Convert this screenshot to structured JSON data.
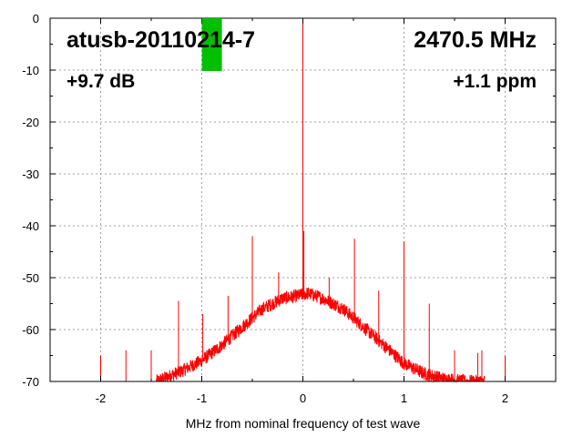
{
  "chart_data": {
    "type": "line",
    "title": "atusb-20110214-7",
    "frequency_text": "2470.5 MHz",
    "gain_text": "+9.7 dB",
    "ppm_text": "+1.1 ppm",
    "xlabel": "MHz from nominal frequency of test wave",
    "ylabel": "",
    "xlim": [
      -2.5,
      2.5
    ],
    "ylim": [
      -70,
      0
    ],
    "xticks": [
      -2,
      -1,
      0,
      1,
      2
    ],
    "xtick_labels": [
      "-2",
      "-1",
      "0",
      "1",
      "2"
    ],
    "yticks": [
      0,
      -10,
      -20,
      -30,
      -40,
      -50,
      -60,
      -70
    ],
    "ytick_labels": [
      "0",
      "-10",
      "-20",
      "-30",
      "-40",
      "-50",
      "-60",
      "-70"
    ],
    "grid": true,
    "series": [
      {
        "color": "#ff0000",
        "noise_envelope": {
          "x": [
            -1.45,
            -1.2,
            -1.0,
            -0.8,
            -0.6,
            -0.4,
            -0.2,
            -0.05,
            0.05,
            0.2,
            0.4,
            0.6,
            0.8,
            1.0,
            1.2,
            1.4,
            1.6,
            1.8
          ],
          "y": [
            -70,
            -68,
            -66,
            -63,
            -59.5,
            -56,
            -54,
            -53.5,
            -53,
            -54,
            -56,
            -59.5,
            -63,
            -66.5,
            -68.5,
            -69.5,
            -70,
            -70
          ]
        },
        "spurs": {
          "x": [
            -2.0,
            -1.75,
            -1.5,
            -1.23,
            -0.99,
            -0.74,
            -0.5,
            -0.24,
            0.0,
            0.01,
            0.26,
            0.51,
            0.75,
            1.0,
            1.25,
            1.5,
            1.73,
            1.77,
            2.0
          ],
          "y": [
            -65,
            -64,
            -64,
            -54.5,
            -57,
            -53.5,
            -42,
            -49,
            0,
            -41,
            -50,
            -42.5,
            -52.5,
            -43,
            -55,
            -64,
            -64.5,
            -64,
            -65
          ]
        }
      }
    ],
    "marker": {
      "x": -0.9,
      "y_top": 0,
      "y_bottom": -10,
      "color": "#00c000"
    }
  }
}
